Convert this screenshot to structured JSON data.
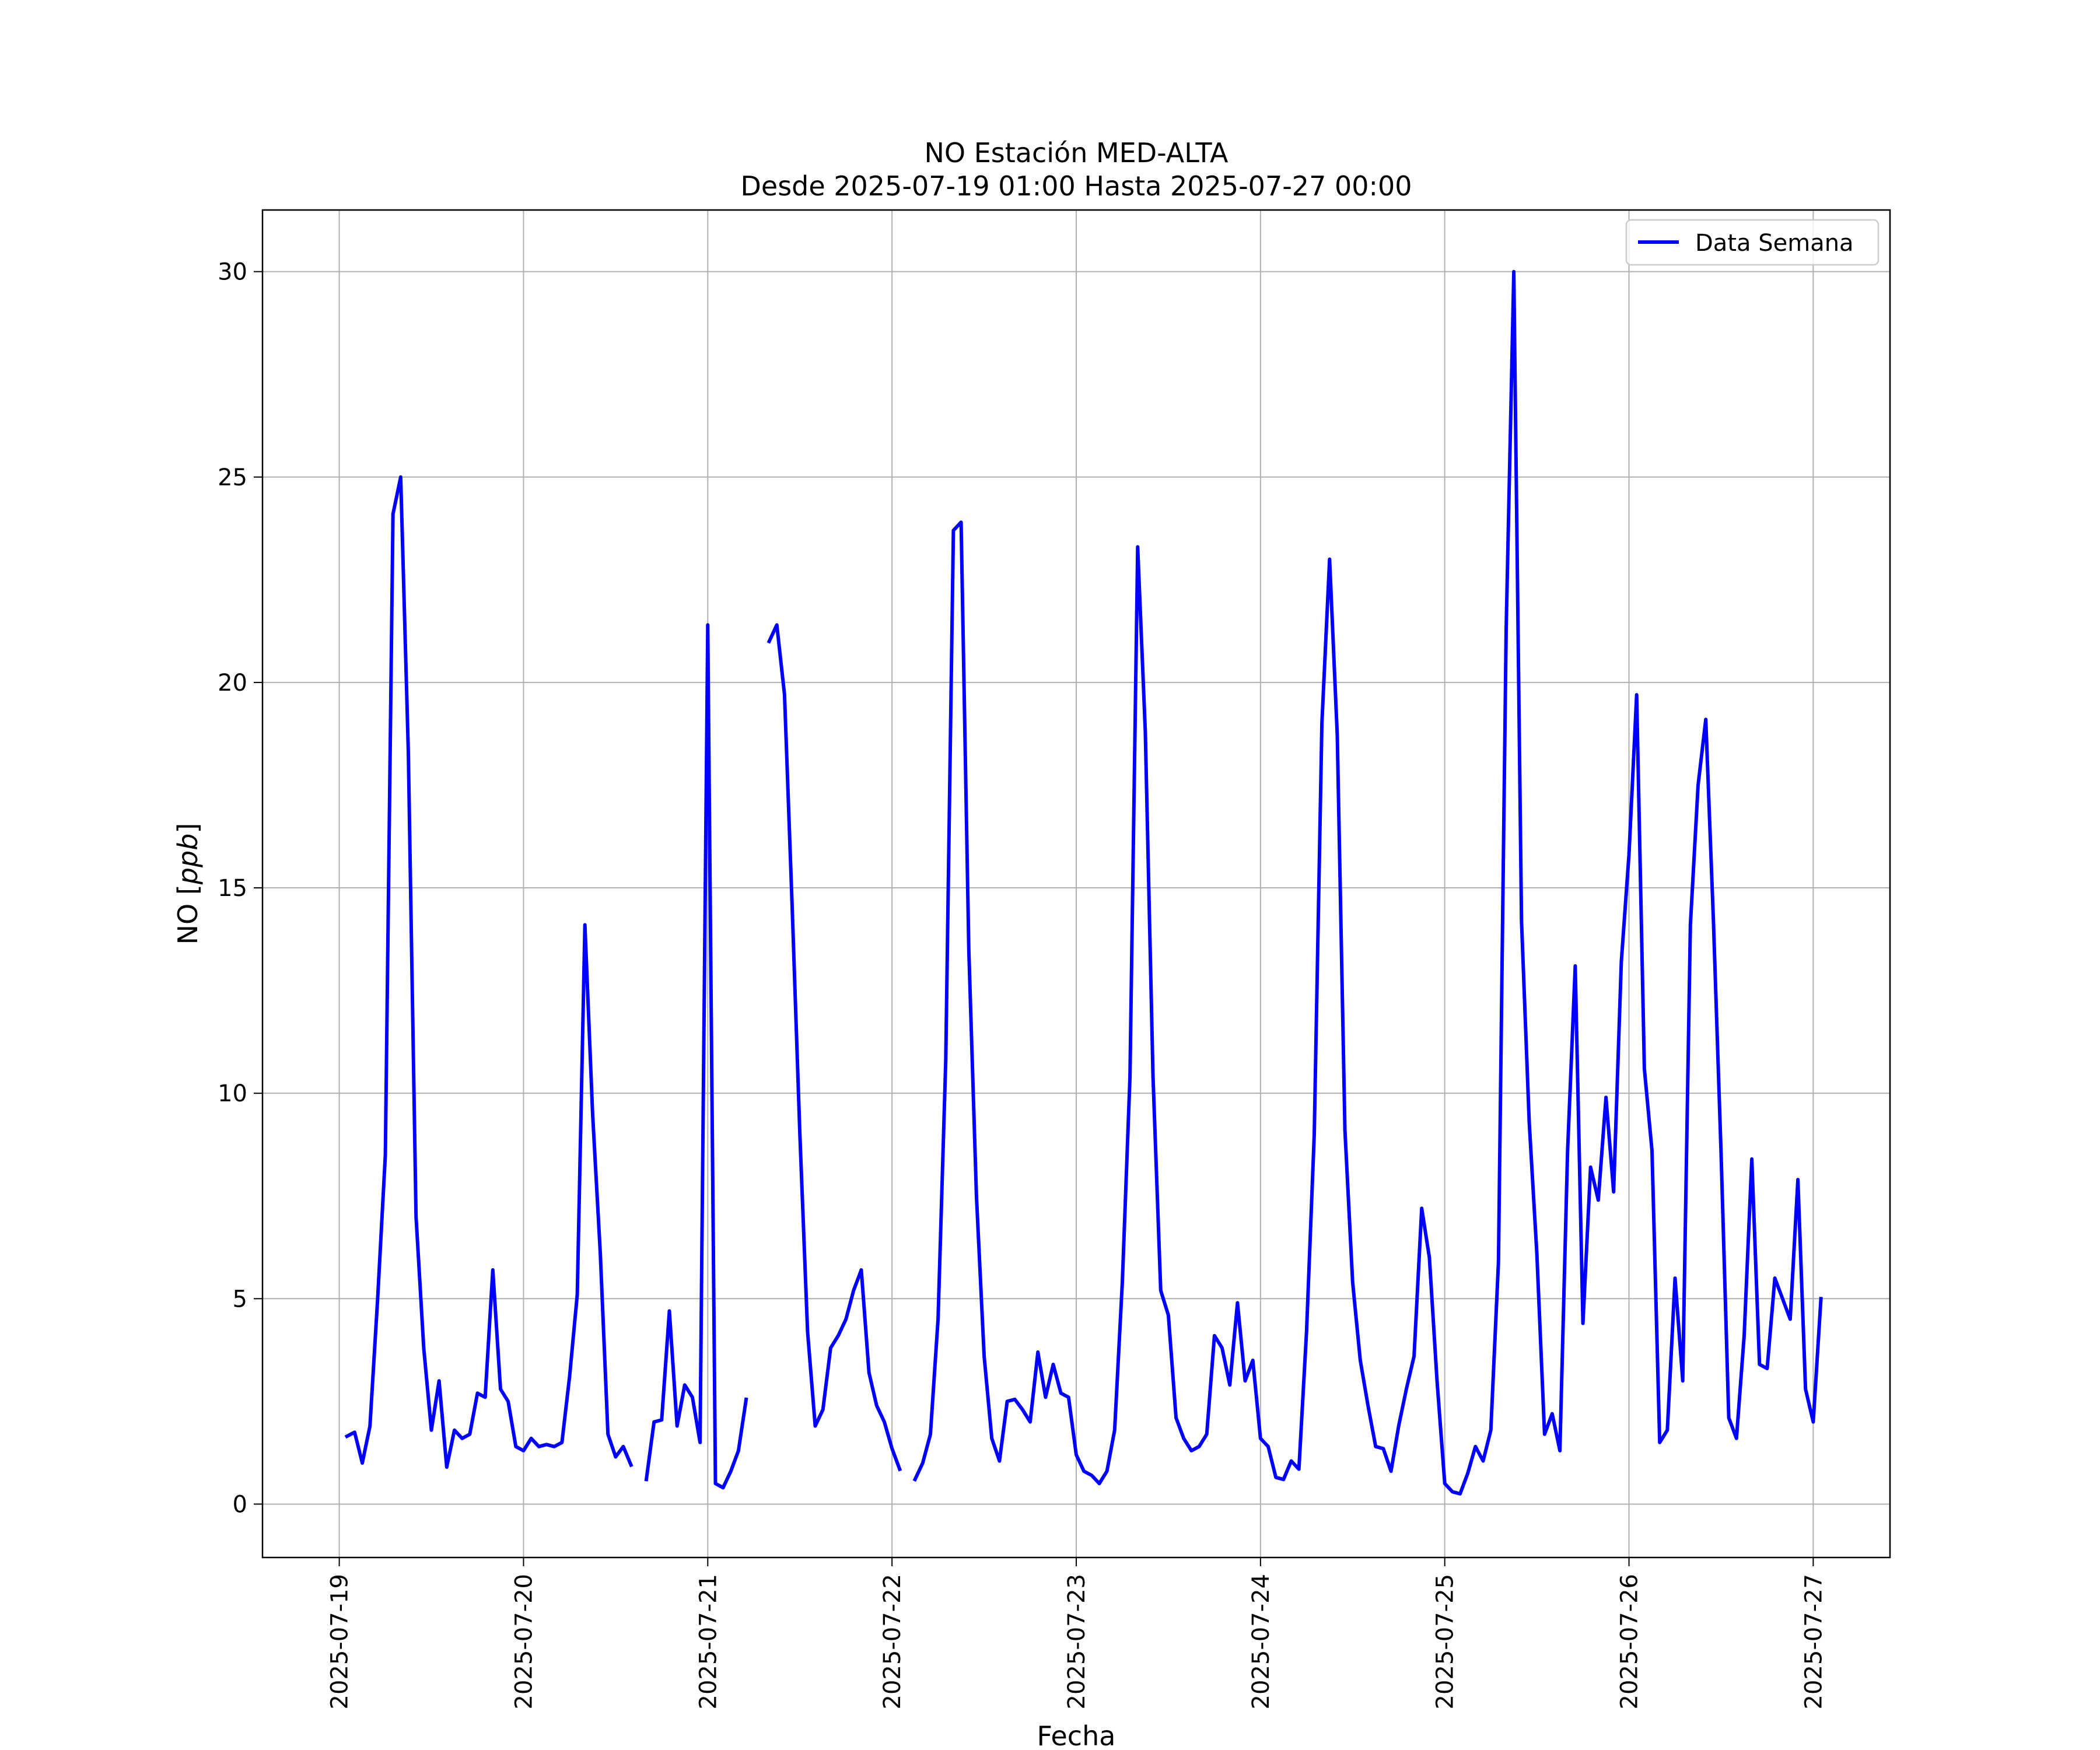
{
  "chart_data": {
    "type": "line",
    "title": "NO Estación MED-ALTA",
    "subtitle": "Desde 2025-07-19 01:00 Hasta 2025-07-27 00:00",
    "xlabel": "Fecha",
    "ylabel_prefix": "NO [",
    "ylabel_unit": "ppb",
    "ylabel_suffix": "]",
    "grid": true,
    "legend_position": "top-right",
    "x_start": "2025-07-19 01:00",
    "x_step_hours": 1,
    "xlim": [
      "2025-07-18 14:00",
      "2025-07-27 10:00"
    ],
    "ylim": [
      -1.3,
      31.5
    ],
    "x_ticks": [
      "2025-07-19",
      "2025-07-20",
      "2025-07-21",
      "2025-07-22",
      "2025-07-23",
      "2025-07-24",
      "2025-07-25",
      "2025-07-26",
      "2025-07-27"
    ],
    "y_ticks": [
      0,
      5,
      10,
      15,
      20,
      25,
      30
    ],
    "series": [
      {
        "name": "Data Semana",
        "color": "#0000ff",
        "values": [
          1.65,
          1.75,
          1.0,
          1.9,
          5.0,
          8.5,
          24.1,
          25.0,
          18.3,
          7.0,
          3.8,
          1.8,
          3.0,
          0.9,
          1.8,
          1.6,
          1.7,
          2.7,
          2.6,
          5.7,
          2.8,
          2.5,
          1.4,
          1.3,
          1.6,
          1.4,
          1.45,
          1.4,
          1.5,
          3.1,
          5.1,
          14.1,
          9.5,
          6.1,
          1.7,
          1.15,
          1.4,
          0.95,
          null,
          0.6,
          2.0,
          2.05,
          4.7,
          1.9,
          2.9,
          2.6,
          1.5,
          21.4,
          0.5,
          0.4,
          0.8,
          1.3,
          2.55,
          null,
          null,
          21.0,
          21.4,
          19.7,
          14.5,
          9.0,
          4.2,
          1.9,
          2.3,
          3.8,
          4.1,
          4.5,
          5.2,
          5.7,
          3.2,
          2.4,
          2.0,
          1.35,
          0.85,
          null,
          0.6,
          1.0,
          1.7,
          4.5,
          10.8,
          23.7,
          23.9,
          13.5,
          7.5,
          3.6,
          1.6,
          1.05,
          2.5,
          2.55,
          2.3,
          2.0,
          3.7,
          2.6,
          3.4,
          2.7,
          2.6,
          1.2,
          0.8,
          0.7,
          0.5,
          0.8,
          1.8,
          5.4,
          10.4,
          23.3,
          18.8,
          10.4,
          5.2,
          4.6,
          2.1,
          1.6,
          1.3,
          1.4,
          1.7,
          4.1,
          3.8,
          2.9,
          4.9,
          3.0,
          3.5,
          1.6,
          1.4,
          0.65,
          0.6,
          1.05,
          0.85,
          4.2,
          9.0,
          19.0,
          23.0,
          18.7,
          9.1,
          5.4,
          3.5,
          2.4,
          1.4,
          1.35,
          0.8,
          1.9,
          2.8,
          3.6,
          7.2,
          6.0,
          3.0,
          0.5,
          0.3,
          0.25,
          0.75,
          1.4,
          1.05,
          1.8,
          5.9,
          21.3,
          30.0,
          14.2,
          9.3,
          6.1,
          1.7,
          2.2,
          1.3,
          8.6,
          13.1,
          4.4,
          8.2,
          7.4,
          9.9,
          7.6,
          13.2,
          15.8,
          19.7,
          10.6,
          8.6,
          1.5,
          1.8,
          5.5,
          3.0,
          14.1,
          17.5,
          19.1,
          14.2,
          8.5,
          2.1,
          1.6,
          4.1,
          8.4,
          3.4,
          3.3,
          5.5,
          5.0,
          4.5,
          7.9,
          2.8,
          2.0,
          5.0
        ]
      }
    ]
  }
}
